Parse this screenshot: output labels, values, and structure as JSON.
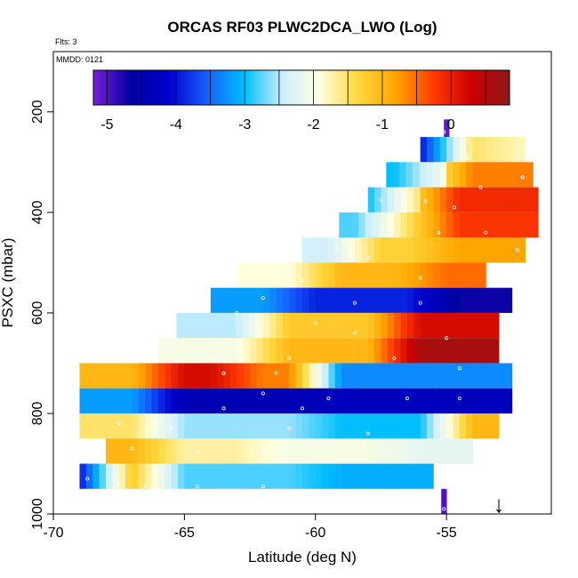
{
  "chart_data": {
    "type": "heatmap",
    "title": "ORCAS RF03 PLWC2DCA_LWO (Log)",
    "flights_note": "Flts: 3",
    "date_note": "MMDD: 0121",
    "xlabel": "Latitude (deg N)",
    "ylabel": "PSXC (mbar)",
    "xlim": [
      -70,
      -51
    ],
    "ylim": [
      1000,
      80
    ],
    "x_ticks": [
      -70,
      -65,
      -60,
      -55
    ],
    "x_tick_labels": [
      "-70",
      "-65",
      "-60",
      "-55"
    ],
    "y_ticks": [
      200,
      400,
      600,
      800,
      1000
    ],
    "y_tick_labels": [
      "200",
      "400",
      "600",
      "800",
      "1000"
    ],
    "colorbar": {
      "range": [
        -5.2,
        0.85
      ],
      "ticks": [
        -5,
        -4,
        -3,
        -2,
        -1,
        0
      ],
      "tick_labels": [
        "-5",
        "-4",
        "-3",
        "-2",
        "-1",
        "0"
      ],
      "colors": [
        "#7a1fd9",
        "#0000a0",
        "#0000cd",
        "#1560ff",
        "#00bfff",
        "#cfefff",
        "#ffffe0",
        "#ffd73c",
        "#ffa500",
        "#ff3a00",
        "#cc0000",
        "#8b1a1a"
      ]
    },
    "level_bands": [
      {
        "p_top": 215,
        "p_bot": 250,
        "segments": [
          [
            -55.1,
            -54.9,
            -5.1
          ]
        ]
      },
      {
        "p_top": 250,
        "p_bot": 300,
        "segments": [
          [
            -56.0,
            -55.0,
            -4.0
          ],
          [
            -55.0,
            -53.0,
            -1.5
          ],
          [
            -53.0,
            -52.0,
            -1.8
          ]
        ]
      },
      {
        "p_top": 300,
        "p_bot": 350,
        "segments": [
          [
            -57.3,
            -56.0,
            -3.0
          ],
          [
            -56.0,
            -55.0,
            -2.0
          ],
          [
            -55.0,
            -51.7,
            -0.6
          ]
        ]
      },
      {
        "p_top": 350,
        "p_bot": 400,
        "segments": [
          [
            -58.0,
            -57.0,
            -3.0
          ],
          [
            -57.0,
            -55.5,
            -1.5
          ],
          [
            -55.5,
            -51.5,
            -0.1
          ]
        ]
      },
      {
        "p_top": 400,
        "p_bot": 450,
        "segments": [
          [
            -59.1,
            -57.5,
            -2.8
          ],
          [
            -57.5,
            -55.5,
            -1.5
          ],
          [
            -55.5,
            -51.5,
            -0.2
          ]
        ]
      },
      {
        "p_top": 450,
        "p_bot": 500,
        "segments": [
          [
            -60.5,
            -58.5,
            -2.4
          ],
          [
            -58.5,
            -55.5,
            -1.3
          ],
          [
            -55.5,
            -52.0,
            -0.8
          ]
        ]
      },
      {
        "p_top": 500,
        "p_bot": 550,
        "segments": [
          [
            -63.0,
            -60.0,
            -1.9
          ],
          [
            -60.0,
            -56.0,
            -1.0
          ],
          [
            -56.0,
            -53.5,
            -0.5
          ]
        ]
      },
      {
        "p_top": 550,
        "p_bot": 600,
        "segments": [
          [
            -64.0,
            -61.0,
            -3.2
          ],
          [
            -61.0,
            -55.5,
            -3.9
          ],
          [
            -55.5,
            -52.5,
            -4.7
          ]
        ]
      },
      {
        "p_top": 600,
        "p_bot": 650,
        "segments": [
          [
            -65.3,
            -62.0,
            -2.5
          ],
          [
            -62.0,
            -57.0,
            -1.2
          ],
          [
            -57.0,
            -53.0,
            0.2
          ]
        ]
      },
      {
        "p_top": 650,
        "p_bot": 700,
        "segments": [
          [
            -66.0,
            -62.0,
            -2.0
          ],
          [
            -62.0,
            -57.0,
            -1.0
          ],
          [
            -57.0,
            -53.0,
            0.6
          ]
        ]
      },
      {
        "p_top": 700,
        "p_bot": 750,
        "segments": [
          [
            -69.0,
            -66.0,
            -1.0
          ],
          [
            -66.0,
            -63.0,
            0.2
          ],
          [
            -63.0,
            -60.0,
            -0.6
          ],
          [
            -60.0,
            -52.5,
            -3.3
          ]
        ]
      },
      {
        "p_top": 750,
        "p_bot": 800,
        "segments": [
          [
            -69.0,
            -66.0,
            -3.2
          ],
          [
            -66.0,
            -60.0,
            -4.4
          ],
          [
            -60.0,
            -52.5,
            -4.3
          ]
        ]
      },
      {
        "p_top": 800,
        "p_bot": 850,
        "segments": [
          [
            -69.0,
            -66.0,
            -1.5
          ],
          [
            -66.0,
            -60.0,
            -2.6
          ],
          [
            -60.0,
            -55.0,
            -3.0
          ],
          [
            -55.0,
            -53.0,
            -1.0
          ]
        ]
      },
      {
        "p_top": 850,
        "p_bot": 900,
        "segments": [
          [
            -68.0,
            -66.0,
            -1.0
          ],
          [
            -66.0,
            -62.0,
            -1.7
          ],
          [
            -62.0,
            -57.0,
            -2.0
          ],
          [
            -57.0,
            -54.0,
            -2.2
          ]
        ]
      },
      {
        "p_top": 900,
        "p_bot": 950,
        "segments": [
          [
            -69.0,
            -68.0,
            -4.0
          ],
          [
            -68.0,
            -66.0,
            -1.2
          ],
          [
            -66.0,
            -60.0,
            -2.8
          ],
          [
            -60.0,
            -55.5,
            -3.1
          ]
        ]
      },
      {
        "p_top": 950,
        "p_bot": 1000,
        "segments": [
          [
            -55.2,
            -55.0,
            -5.0
          ]
        ]
      }
    ],
    "flight_track_points": [
      [
        -55.1,
        240
      ],
      [
        -54.2,
        290
      ],
      [
        -53.7,
        350
      ],
      [
        -52.1,
        330
      ],
      [
        -57.5,
        375
      ],
      [
        -56.5,
        375
      ],
      [
        -55.8,
        378
      ],
      [
        -58.2,
        380
      ],
      [
        -54.7,
        390
      ],
      [
        -53.5,
        440
      ],
      [
        -55.3,
        440
      ],
      [
        -52.3,
        475
      ],
      [
        -59.2,
        470
      ],
      [
        -58.0,
        490
      ],
      [
        -56.0,
        530
      ],
      [
        -60.5,
        535
      ],
      [
        -64.3,
        560
      ],
      [
        -62.0,
        570
      ],
      [
        -58.5,
        580
      ],
      [
        -56.0,
        580
      ],
      [
        -63.0,
        600
      ],
      [
        -60.0,
        620
      ],
      [
        -58.5,
        640
      ],
      [
        -55.0,
        650
      ],
      [
        -65.8,
        660
      ],
      [
        -64.0,
        690
      ],
      [
        -61.0,
        690
      ],
      [
        -57.0,
        690
      ],
      [
        -63.5,
        720
      ],
      [
        -61.5,
        720
      ],
      [
        -54.5,
        710
      ],
      [
        -62.0,
        760
      ],
      [
        -59.5,
        770
      ],
      [
        -56.5,
        770
      ],
      [
        -54.5,
        770
      ],
      [
        -63.5,
        790
      ],
      [
        -60.5,
        790
      ],
      [
        -67.5,
        820
      ],
      [
        -65.5,
        830
      ],
      [
        -61.0,
        830
      ],
      [
        -58.0,
        840
      ],
      [
        -55.0,
        845
      ],
      [
        -68.5,
        855
      ],
      [
        -67.0,
        870
      ],
      [
        -64.5,
        875
      ],
      [
        -62.0,
        880
      ],
      [
        -68.7,
        930
      ],
      [
        -67.5,
        940
      ],
      [
        -66.5,
        945
      ],
      [
        -64.5,
        945
      ],
      [
        -62.0,
        945
      ],
      [
        -59.5,
        960
      ],
      [
        -56.5,
        960
      ],
      [
        -55.1,
        990
      ]
    ],
    "marker_arrow": {
      "latitude": -53.0,
      "symbol": "↓"
    }
  }
}
